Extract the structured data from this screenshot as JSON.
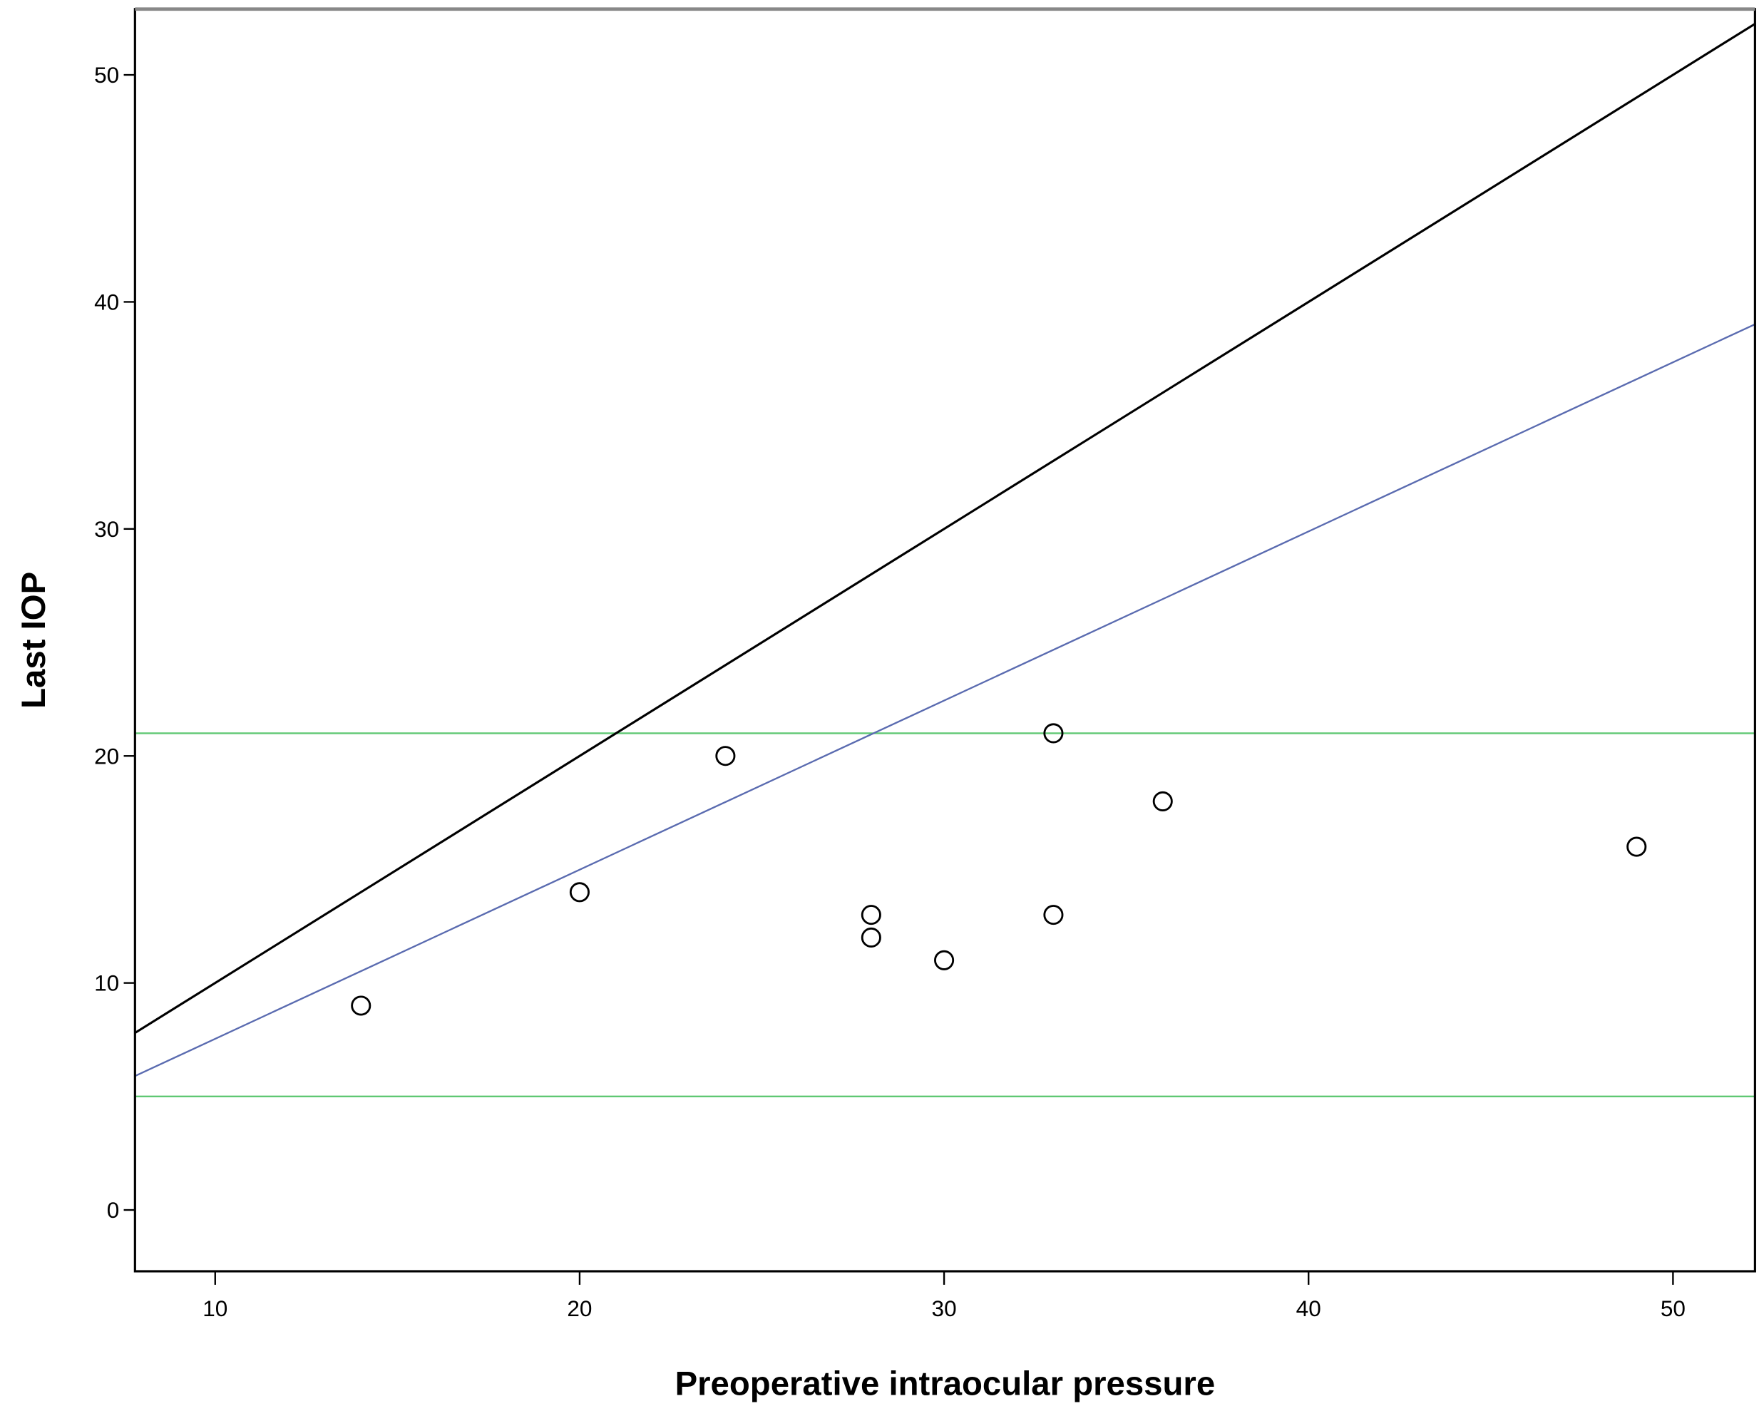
{
  "chart_data": {
    "type": "scatter",
    "title": "",
    "xlabel": "Preoperative intraocular pressure",
    "ylabel": "Last IOP",
    "xlim": [
      7.8,
      52.25
    ],
    "ylim": [
      -2.7,
      52.9
    ],
    "xticks": [
      10,
      20,
      30,
      40,
      50
    ],
    "yticks": [
      0,
      10,
      20,
      30,
      40,
      50
    ],
    "grid": false,
    "points": [
      {
        "x": 14,
        "y": 9
      },
      {
        "x": 20,
        "y": 14
      },
      {
        "x": 24,
        "y": 20
      },
      {
        "x": 28,
        "y": 13
      },
      {
        "x": 28,
        "y": 12
      },
      {
        "x": 30,
        "y": 11
      },
      {
        "x": 33,
        "y": 21
      },
      {
        "x": 33,
        "y": 13
      },
      {
        "x": 36,
        "y": 18
      },
      {
        "x": 49,
        "y": 16
      }
    ],
    "lines": [
      {
        "name": "identity",
        "slope": 1,
        "intercept": 0,
        "color": "#000000"
      },
      {
        "name": "fit",
        "slope": 0.745,
        "intercept": 0.09,
        "color": "#5a6bb0"
      }
    ],
    "hlines": [
      {
        "y": 21,
        "color": "#5fc873"
      },
      {
        "y": 5,
        "color": "#5fc873"
      }
    ]
  }
}
